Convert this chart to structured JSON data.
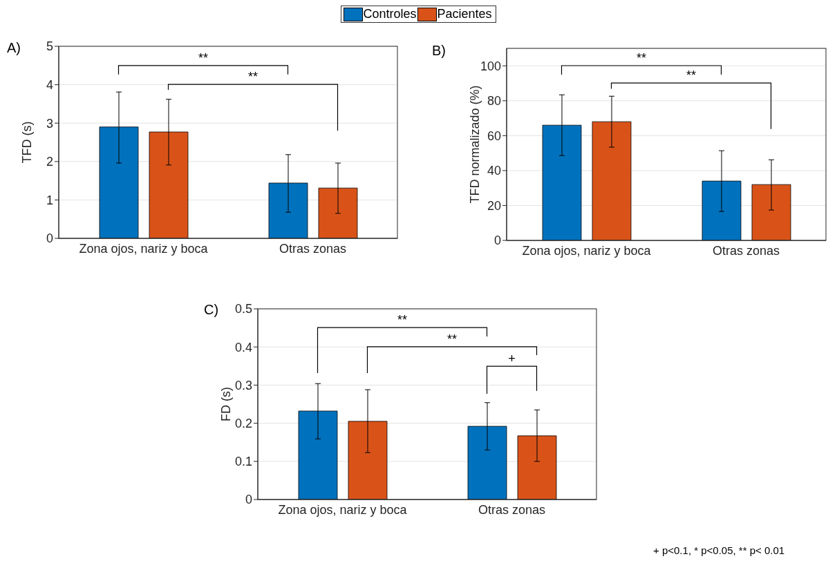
{
  "chart_data": [
    {
      "type": "bar",
      "title": "A)",
      "ylabel": "TFD (s)",
      "categories": [
        "Zona ojos, nariz y boca",
        "Otras zonas"
      ],
      "legend": "top",
      "grid": "y",
      "ylim": [
        0,
        5
      ],
      "yticks": [
        0,
        1,
        2,
        3,
        4,
        5
      ],
      "annotations": [
        "**",
        "**"
      ],
      "series": [
        {
          "name": "Controles",
          "color": "#0072bd",
          "values": [
            2.9,
            1.44
          ],
          "errors": [
            [
              1.96,
              3.81
            ],
            [
              0.68,
              2.18
            ]
          ]
        },
        {
          "name": "Pacientes",
          "color": "#d95319",
          "values": [
            2.77,
            1.31
          ],
          "errors": [
            [
              1.91,
              3.62
            ],
            [
              0.65,
              1.96
            ]
          ]
        }
      ]
    },
    {
      "type": "bar",
      "title": "B)",
      "ylabel": "TFD normalizado (%)",
      "categories": [
        "Zona ojos, nariz y boca",
        "Otras zonas"
      ],
      "grid": "y",
      "ylim": [
        0,
        110
      ],
      "yticks": [
        0,
        20,
        40,
        60,
        80,
        100
      ],
      "annotations": [
        "**",
        "**"
      ],
      "series": [
        {
          "color": "#0072bd",
          "values": [
            66,
            34
          ],
          "errors": [
            [
              48.6,
              83.4
            ],
            [
              16.6,
              51.4
            ]
          ]
        },
        {
          "color": "#d95319",
          "values": [
            68,
            32
          ],
          "errors": [
            [
              53.4,
              82.6
            ],
            [
              17.4,
              46.2
            ]
          ]
        }
      ]
    },
    {
      "type": "bar",
      "title": "C)",
      "ylabel": "FD (s)",
      "categories": [
        "Zona ojos, nariz y boca",
        "Otras zonas"
      ],
      "grid": "y",
      "ylim": [
        0,
        0.5
      ],
      "yticks": [
        0,
        0.1,
        0.2,
        0.3,
        0.4,
        0.5
      ],
      "annotations": [
        "**",
        "**",
        "+",
        "+ p<0.1, * p<0.05, ** p< 0.01"
      ],
      "series": [
        {
          "color": "#0072bd",
          "values": [
            0.232,
            0.192
          ],
          "errors": [
            [
              0.159,
              0.304
            ],
            [
              0.13,
              0.254
            ]
          ]
        },
        {
          "color": "#d95319",
          "values": [
            0.205,
            0.167
          ],
          "errors": [
            [
              0.123,
              0.288
            ],
            [
              0.1,
              0.235
            ]
          ]
        }
      ]
    }
  ]
}
